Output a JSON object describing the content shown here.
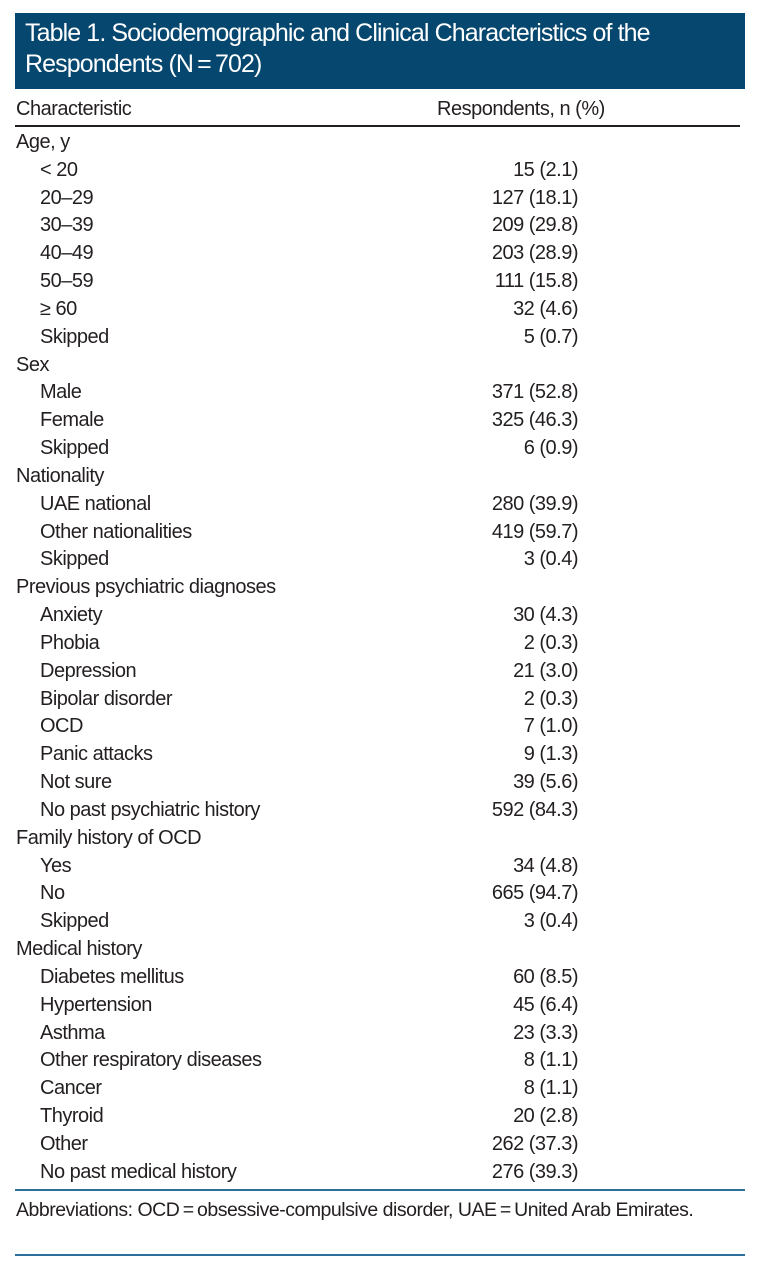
{
  "title": "Table 1. Sociodemographic and Clinical Characteristics of the Respondents (N = 702)",
  "columns": [
    "Characteristic",
    "Respondents, n (%)"
  ],
  "rows": [
    {
      "label": "Age, y",
      "value": "",
      "header": true
    },
    {
      "label": "< 20",
      "value": "15 (2.1)"
    },
    {
      "label": "20–29",
      "value": "127 (18.1)"
    },
    {
      "label": "30–39",
      "value": "209 (29.8)"
    },
    {
      "label": "40–49",
      "value": "203 (28.9)"
    },
    {
      "label": "50–59",
      "value": "111 (15.8)"
    },
    {
      "label": "≥ 60",
      "value": "32 (4.6)"
    },
    {
      "label": "Skipped",
      "value": "5 (0.7)"
    },
    {
      "label": "Sex",
      "value": "",
      "header": true
    },
    {
      "label": "Male",
      "value": "371 (52.8)"
    },
    {
      "label": "Female",
      "value": "325 (46.3)"
    },
    {
      "label": "Skipped",
      "value": "6 (0.9)"
    },
    {
      "label": "Nationality",
      "value": "",
      "header": true
    },
    {
      "label": "UAE national",
      "value": "280 (39.9)"
    },
    {
      "label": "Other nationalities",
      "value": "419 (59.7)"
    },
    {
      "label": "Skipped",
      "value": "3 (0.4)"
    },
    {
      "label": "Previous psychiatric diagnoses",
      "value": "",
      "header": true
    },
    {
      "label": "Anxiety",
      "value": "30 (4.3)"
    },
    {
      "label": "Phobia",
      "value": "2 (0.3)"
    },
    {
      "label": "Depression",
      "value": "21 (3.0)"
    },
    {
      "label": "Bipolar disorder",
      "value": "2 (0.3)"
    },
    {
      "label": "OCD",
      "value": "7 (1.0)"
    },
    {
      "label": "Panic attacks",
      "value": "9 (1.3)"
    },
    {
      "label": "Not sure",
      "value": "39 (5.6)"
    },
    {
      "label": "No past psychiatric history",
      "value": "592 (84.3)"
    },
    {
      "label": "Family history of OCD",
      "value": "",
      "header": true
    },
    {
      "label": "Yes",
      "value": "34 (4.8)"
    },
    {
      "label": "No",
      "value": "665 (94.7)"
    },
    {
      "label": "Skipped",
      "value": "3 (0.4)"
    },
    {
      "label": "Medical history",
      "value": "",
      "header": true
    },
    {
      "label": "Diabetes mellitus",
      "value": "60 (8.5)"
    },
    {
      "label": "Hypertension",
      "value": "45 (6.4)"
    },
    {
      "label": "Asthma",
      "value": "23 (3.3)"
    },
    {
      "label": "Other respiratory diseases",
      "value": "8 (1.1)"
    },
    {
      "label": "Cancer",
      "value": "8 (1.1)"
    },
    {
      "label": "Thyroid",
      "value": "20 (2.8)"
    },
    {
      "label": "Other",
      "value": "262 (37.3)"
    },
    {
      "label": "No past medical history",
      "value": "276 (39.3)"
    }
  ],
  "footnote": "Abbreviations: OCD = obsessive-compulsive disorder, UAE = United Arab Emirates.",
  "colors": {
    "header_bg": "#06476f",
    "rule": "#2f6f9c"
  }
}
